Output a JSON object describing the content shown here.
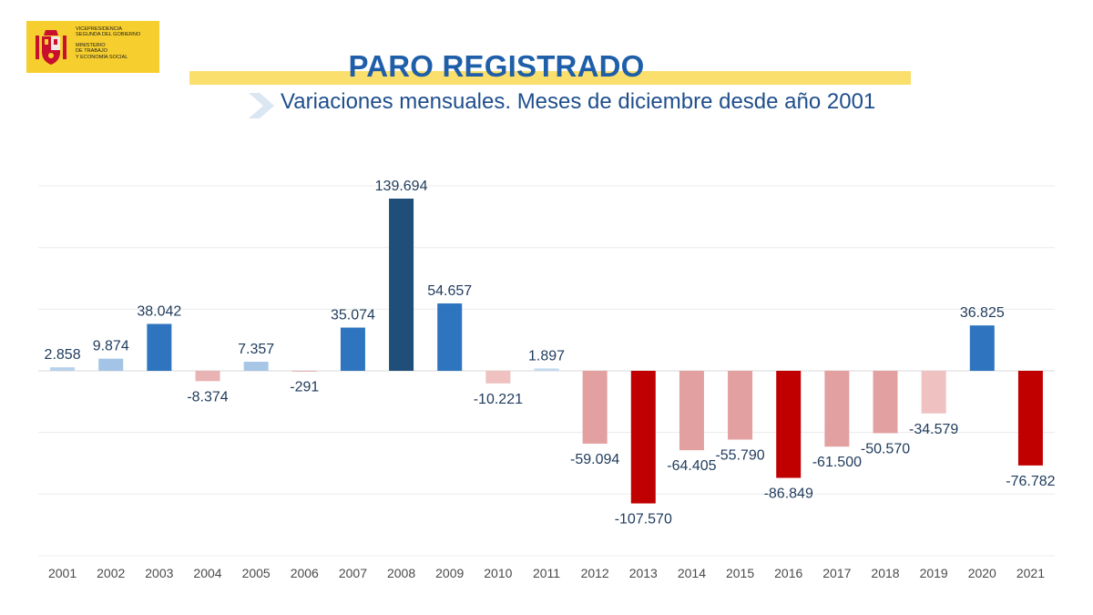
{
  "logo": {
    "line1": "Vicepresidencia",
    "line2": "Segunda del Gobierno",
    "line3": "Ministerio",
    "line4": "de Trabajo",
    "line5": "y Economía Social"
  },
  "header": {
    "title": "PARO REGISTRADO",
    "subtitle": "Variaciones mensuales. Meses de diciembre desde año 2001"
  },
  "colors": {
    "title_bar": "#fbdf6c",
    "logo_bg": "#f6cf2e",
    "title": "#1f5ea8",
    "subtitle": "#1f4e8c",
    "label": "#1f3b5c",
    "axis_label": "#4a4a4a"
  },
  "chart_data": {
    "type": "bar",
    "title": "",
    "xlabel": "",
    "ylabel": "",
    "ylim": [
      -150000,
      150000
    ],
    "grid": true,
    "categories": [
      "2001",
      "2002",
      "2003",
      "2004",
      "2005",
      "2006",
      "2007",
      "2008",
      "2009",
      "2010",
      "2011",
      "2012",
      "2013",
      "2014",
      "2015",
      "2016",
      "2017",
      "2018",
      "2019",
      "2020",
      "2021"
    ],
    "values": [
      2858,
      9874,
      38042,
      -8374,
      7357,
      -291,
      35074,
      139694,
      54657,
      -10221,
      1897,
      -59094,
      -107570,
      -64405,
      -55790,
      -86849,
      -61500,
      -50570,
      -34579,
      36825,
      -76782
    ],
    "labels": [
      "2.858",
      "9.874",
      "38.042",
      "-8.374",
      "7.357",
      "-291",
      "35.074",
      "139.694",
      "54.657",
      "-10.221",
      "1.897",
      "-59.094",
      "-107.570",
      "-64.405",
      "-55.790",
      "-86.849",
      "-61.500",
      "-50.570",
      "-34.579",
      "36.825",
      "-76.782"
    ],
    "bar_colors": [
      "#b7d1ec",
      "#a3c4e6",
      "#2e74bf",
      "#e9b3b3",
      "#a7c6e6",
      "#e9b3b3",
      "#2e74bf",
      "#1f4e79",
      "#2e74bf",
      "#efc1c1",
      "#c2d8ef",
      "#e3a0a0",
      "#c00000",
      "#e3a0a0",
      "#e3a0a0",
      "#c00000",
      "#e3a0a0",
      "#e3a0a0",
      "#efc1c1",
      "#2e74bf",
      "#c00000"
    ]
  }
}
